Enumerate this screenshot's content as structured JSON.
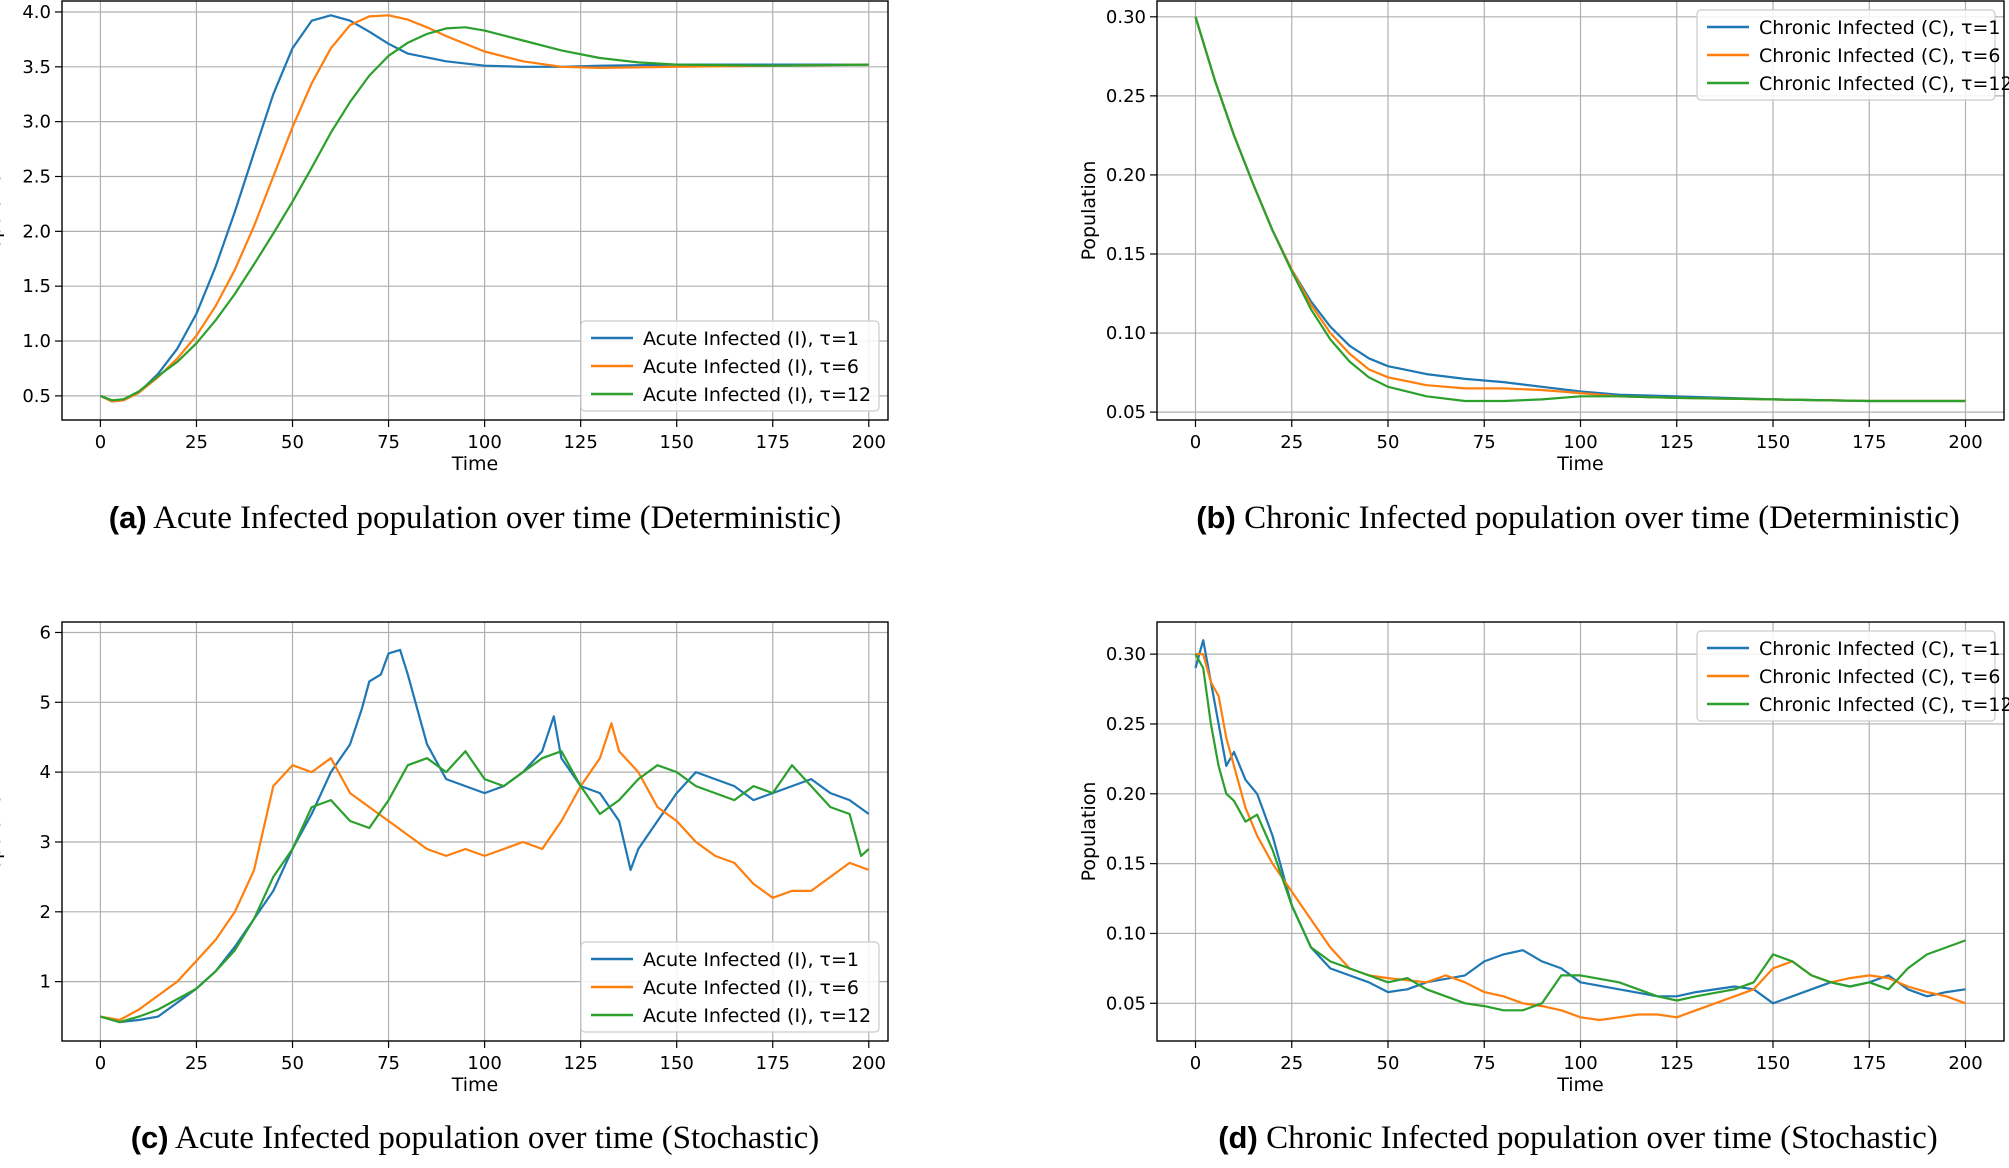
{
  "colors": {
    "tau1": "#1f77b4",
    "tau6": "#ff7f0e",
    "tau12": "#2ca02c"
  },
  "chart_data": [
    {
      "id": "a",
      "type": "line",
      "caption_letter": "(a)",
      "caption_text": "Acute Infected population over time (Deterministic)",
      "xlabel": "Time",
      "ylabel": "Population",
      "xlim": [
        -10,
        205
      ],
      "ylim": [
        0.28,
        4.1
      ],
      "xticks": [
        0,
        25,
        50,
        75,
        100,
        125,
        150,
        175,
        200
      ],
      "yticks": [
        0.5,
        1.0,
        1.5,
        2.0,
        2.5,
        3.0,
        3.5,
        4.0
      ],
      "ytick_decimals": 1,
      "grid": true,
      "legend_position": "lower-right",
      "series": [
        {
          "name": "Acute Infected (I), τ=1",
          "color": "#1f77b4",
          "x": [
            0,
            3,
            6,
            10,
            15,
            20,
            25,
            30,
            35,
            40,
            45,
            50,
            55,
            60,
            65,
            70,
            75,
            80,
            90,
            100,
            110,
            120,
            130,
            150,
            175,
            200
          ],
          "y": [
            0.5,
            0.45,
            0.46,
            0.53,
            0.7,
            0.93,
            1.25,
            1.68,
            2.18,
            2.72,
            3.25,
            3.67,
            3.92,
            3.97,
            3.92,
            3.82,
            3.71,
            3.62,
            3.55,
            3.51,
            3.5,
            3.5,
            3.51,
            3.52,
            3.52,
            3.52
          ]
        },
        {
          "name": "Acute Infected (I), τ=6",
          "color": "#ff7f0e",
          "x": [
            0,
            3,
            6,
            10,
            15,
            20,
            25,
            30,
            35,
            40,
            45,
            50,
            55,
            60,
            65,
            70,
            75,
            80,
            85,
            90,
            100,
            110,
            120,
            130,
            150,
            175,
            200
          ],
          "y": [
            0.5,
            0.45,
            0.46,
            0.53,
            0.67,
            0.84,
            1.05,
            1.32,
            1.65,
            2.05,
            2.5,
            2.95,
            3.35,
            3.67,
            3.88,
            3.96,
            3.97,
            3.93,
            3.86,
            3.78,
            3.64,
            3.55,
            3.5,
            3.49,
            3.5,
            3.51,
            3.52
          ]
        },
        {
          "name": "Acute Infected (I), τ=12",
          "color": "#2ca02c",
          "x": [
            0,
            3,
            6,
            10,
            15,
            20,
            25,
            30,
            35,
            40,
            45,
            50,
            55,
            60,
            65,
            70,
            75,
            80,
            85,
            90,
            95,
            100,
            110,
            120,
            130,
            140,
            150,
            175,
            200
          ],
          "y": [
            0.5,
            0.46,
            0.47,
            0.54,
            0.68,
            0.81,
            0.98,
            1.19,
            1.43,
            1.7,
            1.98,
            2.27,
            2.58,
            2.9,
            3.18,
            3.42,
            3.6,
            3.72,
            3.8,
            3.85,
            3.86,
            3.83,
            3.74,
            3.65,
            3.58,
            3.54,
            3.52,
            3.51,
            3.52
          ]
        }
      ]
    },
    {
      "id": "b",
      "type": "line",
      "caption_letter": "(b)",
      "caption_text": "Chronic Infected population over time (Deterministic)",
      "xlabel": "Time",
      "ylabel": "Population",
      "xlim": [
        -10,
        210
      ],
      "ylim": [
        0.045,
        0.31
      ],
      "xticks": [
        0,
        25,
        50,
        75,
        100,
        125,
        150,
        175,
        200
      ],
      "yticks": [
        0.05,
        0.1,
        0.15,
        0.2,
        0.25,
        0.3
      ],
      "ytick_decimals": 2,
      "grid": true,
      "legend_position": "upper-right",
      "series": [
        {
          "name": "Chronic Infected (C), τ=1",
          "color": "#1f77b4",
          "x": [
            0,
            5,
            10,
            15,
            20,
            25,
            30,
            35,
            40,
            45,
            50,
            60,
            70,
            80,
            90,
            100,
            110,
            125,
            150,
            175,
            200
          ],
          "y": [
            0.3,
            0.26,
            0.225,
            0.194,
            0.165,
            0.14,
            0.12,
            0.104,
            0.092,
            0.084,
            0.079,
            0.074,
            0.071,
            0.069,
            0.066,
            0.063,
            0.061,
            0.06,
            0.058,
            0.057,
            0.057
          ]
        },
        {
          "name": "Chronic Infected (C), τ=6",
          "color": "#ff7f0e",
          "x": [
            0,
            5,
            10,
            15,
            20,
            25,
            30,
            35,
            40,
            45,
            50,
            60,
            70,
            80,
            90,
            100,
            110,
            125,
            150,
            175,
            200
          ],
          "y": [
            0.3,
            0.26,
            0.225,
            0.194,
            0.165,
            0.14,
            0.118,
            0.1,
            0.087,
            0.077,
            0.072,
            0.067,
            0.065,
            0.065,
            0.064,
            0.062,
            0.06,
            0.059,
            0.058,
            0.057,
            0.057
          ]
        },
        {
          "name": "Chronic Infected (C), τ=12",
          "color": "#2ca02c",
          "x": [
            0,
            5,
            10,
            15,
            20,
            25,
            30,
            35,
            40,
            45,
            50,
            60,
            70,
            80,
            90,
            100,
            110,
            125,
            150,
            175,
            200
          ],
          "y": [
            0.3,
            0.26,
            0.225,
            0.194,
            0.165,
            0.139,
            0.115,
            0.096,
            0.082,
            0.072,
            0.066,
            0.06,
            0.057,
            0.057,
            0.058,
            0.06,
            0.06,
            0.059,
            0.058,
            0.057,
            0.057
          ]
        }
      ]
    },
    {
      "id": "c",
      "type": "line",
      "caption_letter": "(c)",
      "caption_text": "Acute Infected population over time (Stochastic)",
      "xlabel": "Time",
      "ylabel": "Population",
      "xlim": [
        -10,
        205
      ],
      "ylim": [
        0.15,
        6.15
      ],
      "xticks": [
        0,
        25,
        50,
        75,
        100,
        125,
        150,
        175,
        200
      ],
      "yticks": [
        1,
        2,
        3,
        4,
        5,
        6
      ],
      "ytick_decimals": 0,
      "grid": true,
      "legend_position": "lower-right",
      "series": [
        {
          "name": "Acute Infected (I), τ=1",
          "color": "#1f77b4",
          "x": [
            0,
            5,
            10,
            15,
            20,
            25,
            30,
            35,
            40,
            45,
            50,
            55,
            60,
            65,
            68,
            70,
            73,
            75,
            78,
            80,
            83,
            85,
            88,
            90,
            95,
            100,
            105,
            110,
            115,
            118,
            120,
            125,
            130,
            135,
            138,
            140,
            145,
            150,
            155,
            160,
            165,
            170,
            175,
            180,
            185,
            190,
            195,
            200
          ],
          "y": [
            0.5,
            0.42,
            0.45,
            0.5,
            0.7,
            0.9,
            1.15,
            1.5,
            1.9,
            2.3,
            2.9,
            3.4,
            4.0,
            4.4,
            4.9,
            5.3,
            5.4,
            5.7,
            5.75,
            5.4,
            4.8,
            4.4,
            4.1,
            3.9,
            3.8,
            3.7,
            3.8,
            4.0,
            4.3,
            4.8,
            4.2,
            3.8,
            3.7,
            3.3,
            2.6,
            2.9,
            3.3,
            3.7,
            4.0,
            3.9,
            3.8,
            3.6,
            3.7,
            3.8,
            3.9,
            3.7,
            3.6,
            3.4
          ]
        },
        {
          "name": "Acute Infected (I), τ=6",
          "color": "#ff7f0e",
          "x": [
            0,
            5,
            10,
            15,
            20,
            25,
            30,
            35,
            40,
            45,
            50,
            55,
            60,
            65,
            70,
            75,
            80,
            85,
            90,
            95,
            100,
            105,
            110,
            115,
            120,
            125,
            130,
            133,
            135,
            140,
            145,
            150,
            155,
            160,
            165,
            170,
            175,
            180,
            185,
            190,
            195,
            200
          ],
          "y": [
            0.5,
            0.45,
            0.6,
            0.8,
            1.0,
            1.3,
            1.6,
            2.0,
            2.6,
            3.8,
            4.1,
            4.0,
            4.2,
            3.7,
            3.5,
            3.3,
            3.1,
            2.9,
            2.8,
            2.9,
            2.8,
            2.9,
            3.0,
            2.9,
            3.3,
            3.8,
            4.2,
            4.7,
            4.3,
            4.0,
            3.5,
            3.3,
            3.0,
            2.8,
            2.7,
            2.4,
            2.2,
            2.3,
            2.3,
            2.5,
            2.7,
            2.6
          ]
        },
        {
          "name": "Acute Infected (I), τ=12",
          "color": "#2ca02c",
          "x": [
            0,
            5,
            10,
            15,
            20,
            25,
            30,
            35,
            40,
            45,
            50,
            55,
            60,
            65,
            70,
            75,
            80,
            85,
            90,
            95,
            100,
            105,
            110,
            115,
            120,
            125,
            130,
            135,
            140,
            145,
            150,
            155,
            160,
            165,
            170,
            175,
            180,
            185,
            190,
            195,
            198,
            200
          ],
          "y": [
            0.5,
            0.42,
            0.5,
            0.6,
            0.75,
            0.9,
            1.15,
            1.45,
            1.9,
            2.5,
            2.9,
            3.5,
            3.6,
            3.3,
            3.2,
            3.6,
            4.1,
            4.2,
            4.0,
            4.3,
            3.9,
            3.8,
            4.0,
            4.2,
            4.3,
            3.8,
            3.4,
            3.6,
            3.9,
            4.1,
            4.0,
            3.8,
            3.7,
            3.6,
            3.8,
            3.7,
            4.1,
            3.8,
            3.5,
            3.4,
            2.8,
            2.9
          ]
        }
      ]
    },
    {
      "id": "d",
      "type": "line",
      "caption_letter": "(d)",
      "caption_text": "Chronic Infected population over time (Stochastic)",
      "xlabel": "Time",
      "ylabel": "Population",
      "xlim": [
        -10,
        210
      ],
      "ylim": [
        0.023,
        0.323
      ],
      "xticks": [
        0,
        25,
        50,
        75,
        100,
        125,
        150,
        175,
        200
      ],
      "yticks": [
        0.05,
        0.1,
        0.15,
        0.2,
        0.25,
        0.3
      ],
      "ytick_decimals": 2,
      "grid": true,
      "legend_position": "upper-right",
      "series": [
        {
          "name": "Chronic Infected (C), τ=1",
          "color": "#1f77b4",
          "x": [
            0,
            2,
            4,
            6,
            8,
            10,
            13,
            16,
            20,
            25,
            30,
            35,
            40,
            45,
            50,
            55,
            60,
            70,
            75,
            80,
            85,
            90,
            95,
            100,
            110,
            120,
            125,
            130,
            140,
            145,
            150,
            155,
            160,
            165,
            170,
            175,
            180,
            185,
            190,
            195,
            200
          ],
          "y": [
            0.29,
            0.31,
            0.28,
            0.25,
            0.22,
            0.23,
            0.21,
            0.2,
            0.17,
            0.12,
            0.09,
            0.075,
            0.07,
            0.065,
            0.058,
            0.06,
            0.065,
            0.07,
            0.08,
            0.085,
            0.088,
            0.08,
            0.075,
            0.065,
            0.06,
            0.055,
            0.055,
            0.058,
            0.062,
            0.06,
            0.05,
            0.055,
            0.06,
            0.065,
            0.062,
            0.065,
            0.07,
            0.06,
            0.055,
            0.058,
            0.06
          ]
        },
        {
          "name": "Chronic Infected (C), τ=6",
          "color": "#ff7f0e",
          "x": [
            0,
            2,
            4,
            6,
            8,
            10,
            13,
            16,
            20,
            25,
            30,
            35,
            40,
            45,
            50,
            60,
            65,
            70,
            75,
            80,
            85,
            90,
            95,
            100,
            105,
            110,
            115,
            120,
            125,
            130,
            140,
            145,
            150,
            155,
            160,
            165,
            170,
            175,
            180,
            185,
            190,
            195,
            200
          ],
          "y": [
            0.3,
            0.3,
            0.28,
            0.27,
            0.24,
            0.22,
            0.19,
            0.17,
            0.15,
            0.13,
            0.11,
            0.09,
            0.075,
            0.07,
            0.068,
            0.065,
            0.07,
            0.065,
            0.058,
            0.055,
            0.05,
            0.048,
            0.045,
            0.04,
            0.038,
            0.04,
            0.042,
            0.042,
            0.04,
            0.045,
            0.055,
            0.06,
            0.075,
            0.08,
            0.07,
            0.065,
            0.068,
            0.07,
            0.068,
            0.062,
            0.058,
            0.055,
            0.05
          ]
        },
        {
          "name": "Chronic Infected (C), τ=12",
          "color": "#2ca02c",
          "x": [
            0,
            2,
            4,
            6,
            8,
            10,
            13,
            16,
            20,
            25,
            30,
            35,
            40,
            45,
            50,
            55,
            60,
            65,
            70,
            75,
            80,
            85,
            90,
            95,
            100,
            110,
            120,
            125,
            130,
            140,
            145,
            150,
            155,
            160,
            165,
            170,
            175,
            180,
            185,
            190,
            195,
            200
          ],
          "y": [
            0.3,
            0.29,
            0.25,
            0.22,
            0.2,
            0.195,
            0.18,
            0.185,
            0.16,
            0.12,
            0.09,
            0.08,
            0.075,
            0.07,
            0.065,
            0.068,
            0.06,
            0.055,
            0.05,
            0.048,
            0.045,
            0.045,
            0.05,
            0.07,
            0.07,
            0.065,
            0.055,
            0.052,
            0.055,
            0.06,
            0.065,
            0.085,
            0.08,
            0.07,
            0.065,
            0.062,
            0.065,
            0.06,
            0.075,
            0.085,
            0.09,
            0.095
          ]
        }
      ]
    }
  ]
}
